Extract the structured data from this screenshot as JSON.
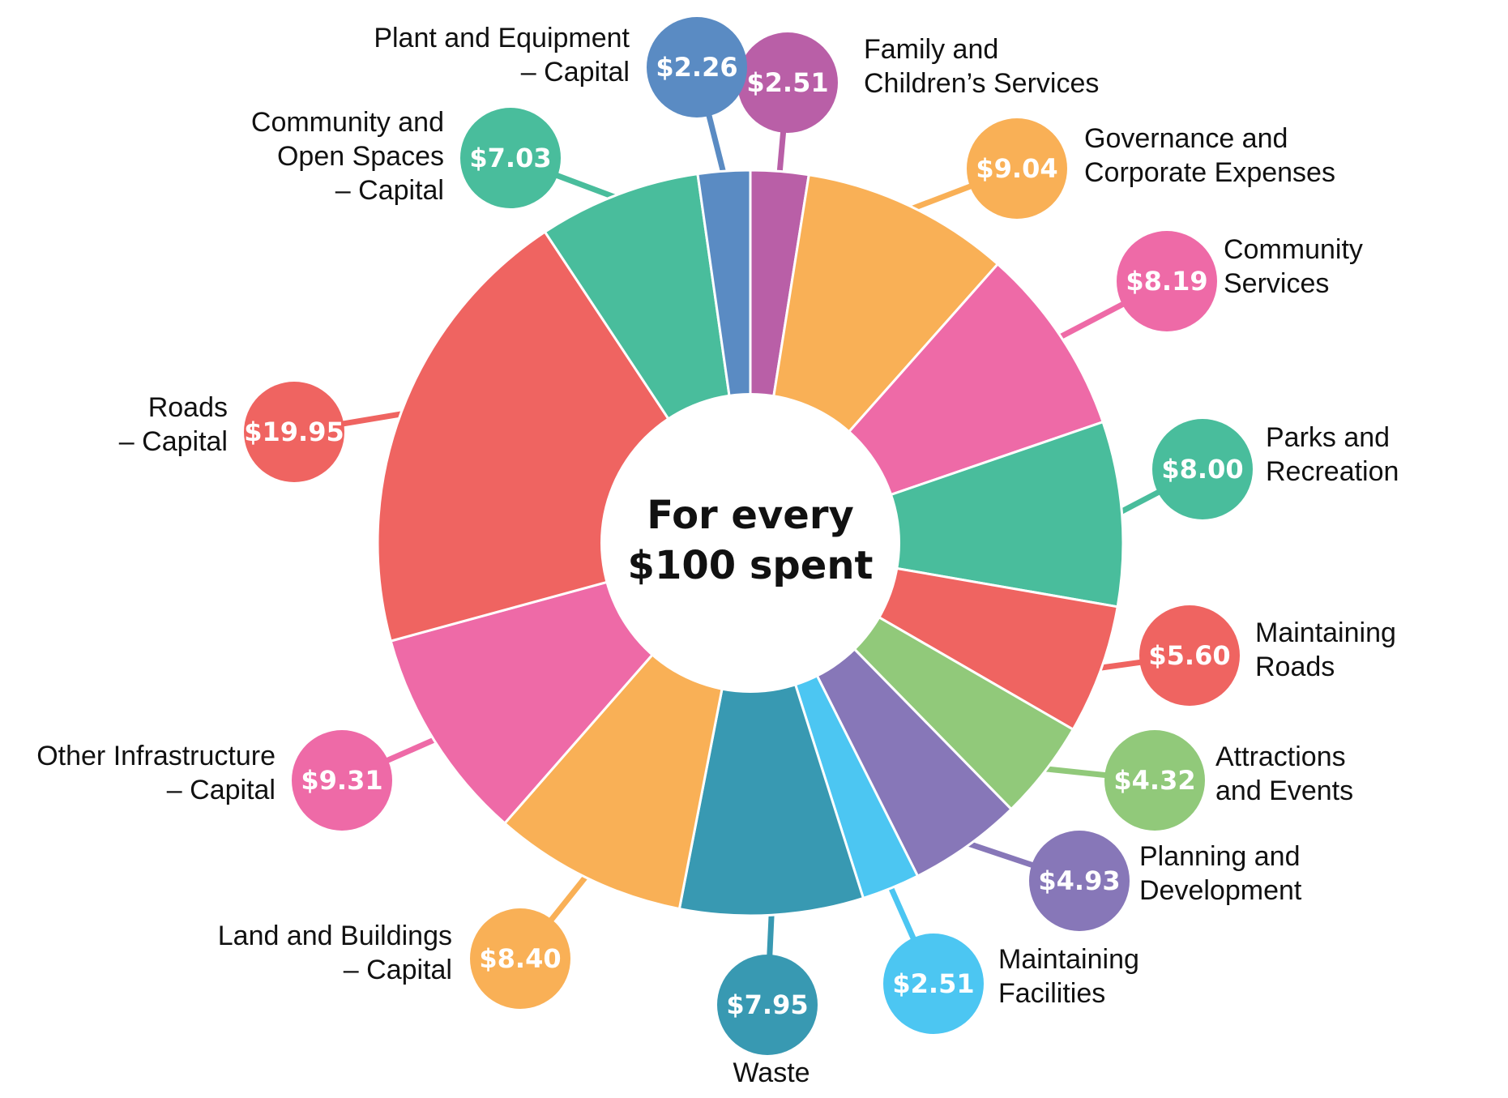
{
  "chart_data": {
    "type": "pie",
    "center_label": [
      "For every",
      "$100 spent"
    ],
    "slices": [
      {
        "label": [
          "Family and",
          "Children’s Services"
        ],
        "value": 2.51,
        "display": "$2.51",
        "color": "#b95fa7"
      },
      {
        "label": [
          "Governance and",
          "Corporate Expenses"
        ],
        "value": 9.04,
        "display": "$9.04",
        "color": "#f9b056"
      },
      {
        "label": [
          "Community",
          "Services"
        ],
        "value": 8.19,
        "display": "$8.19",
        "color": "#ee6aa7"
      },
      {
        "label": [
          "Parks and",
          "Recreation"
        ],
        "value": 8.0,
        "display": "$8.00",
        "color": "#49bd9c"
      },
      {
        "label": [
          "Maintaining",
          "Roads"
        ],
        "value": 5.6,
        "display": "$5.60",
        "color": "#ef6461"
      },
      {
        "label": [
          "Attractions",
          "and Events"
        ],
        "value": 4.32,
        "display": "$4.32",
        "color": "#91c97a"
      },
      {
        "label": [
          "Planning and",
          "Development"
        ],
        "value": 4.93,
        "display": "$4.93",
        "color": "#8777b8"
      },
      {
        "label": [
          "Maintaining",
          "Facilities"
        ],
        "value": 2.51,
        "display": "$2.51",
        "color": "#4cc6f2"
      },
      {
        "label": [
          "Waste"
        ],
        "value": 7.95,
        "display": "$7.95",
        "color": "#3899b2"
      },
      {
        "label": [
          "Land and Buildings",
          "– Capital"
        ],
        "value": 8.4,
        "display": "$8.40",
        "color": "#f9b056"
      },
      {
        "label": [
          "Other Infrastructure",
          "– Capital"
        ],
        "value": 9.31,
        "display": "$9.31",
        "color": "#ee6aa7"
      },
      {
        "label": [
          "Roads",
          "– Capital"
        ],
        "value": 19.95,
        "display": "$19.95",
        "color": "#ef6461"
      },
      {
        "label": [
          "Community and",
          "Open Spaces",
          "– Capital"
        ],
        "value": 7.03,
        "display": "$7.03",
        "color": "#49bd9c"
      },
      {
        "label": [
          "Plant and Equipment",
          "– Capital"
        ],
        "value": 2.26,
        "display": "$2.26",
        "color": "#5a8bc3"
      }
    ]
  }
}
